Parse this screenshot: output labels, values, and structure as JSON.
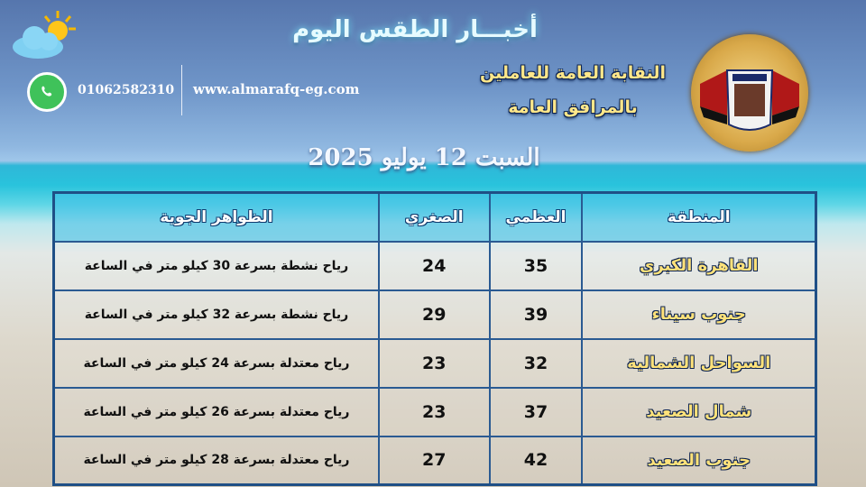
{
  "header": {
    "title": "أخبـــار الطقس اليوم",
    "union_line1": "النقابة العامة للعاملين",
    "union_line2": "بالمرافق العامة",
    "date": "السبت 12 يوليو 2025",
    "phone": "01062582310",
    "website": "www.almarafq-eg.com"
  },
  "table": {
    "headers": [
      "المنطقة",
      "العظمي",
      "الصغري",
      "الظواهر الجوية"
    ],
    "rows": [
      {
        "region": "القاهرة الكبري",
        "max": "35",
        "min": "24",
        "desc": "رياح نشطة بسرعة 30 كيلو متر في الساعة"
      },
      {
        "region": "جنوب سيناء",
        "max": "39",
        "min": "29",
        "desc": "رياح نشطة بسرعة 32 كيلو متر في الساعة"
      },
      {
        "region": "السواحل الشمالية",
        "max": "32",
        "min": "23",
        "desc": "رياح معتدلة بسرعة 24 كيلو متر في الساعة"
      },
      {
        "region": "شمال الصعيد",
        "max": "37",
        "min": "23",
        "desc": "رياح معتدلة بسرعة 26 كيلو متر في الساعة"
      },
      {
        "region": "جنوب الصعيد",
        "max": "42",
        "min": "27",
        "desc": "رياح معتدلة بسرعة 28 كيلو متر في الساعة"
      }
    ]
  },
  "icons": [
    "sun-cloud-icon",
    "whatsapp-icon",
    "union-logo"
  ]
}
